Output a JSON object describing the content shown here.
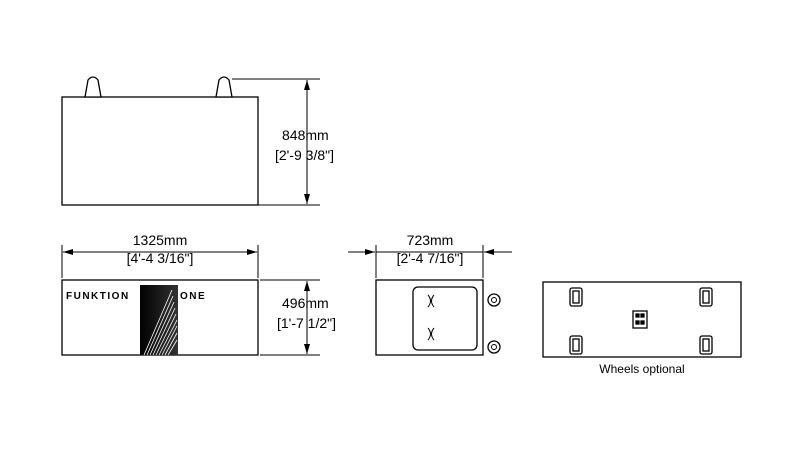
{
  "top_view": {
    "height_label": "848mm",
    "height_label_imperial": "[2'-9 3/8\"]"
  },
  "front_view": {
    "width_label": "1325mm",
    "width_label_imperial": "[4'-4 3/16\"]",
    "height_label": "496mm",
    "height_label_imperial": "[1'-7 1/2\"]",
    "logo_left": "FUNKTION",
    "logo_right": "ONE"
  },
  "side_view": {
    "depth_label": "723mm",
    "depth_label_imperial": "[2'-4 7/16\"]"
  },
  "bottom_view": {
    "caption": "Wheels optional"
  }
}
